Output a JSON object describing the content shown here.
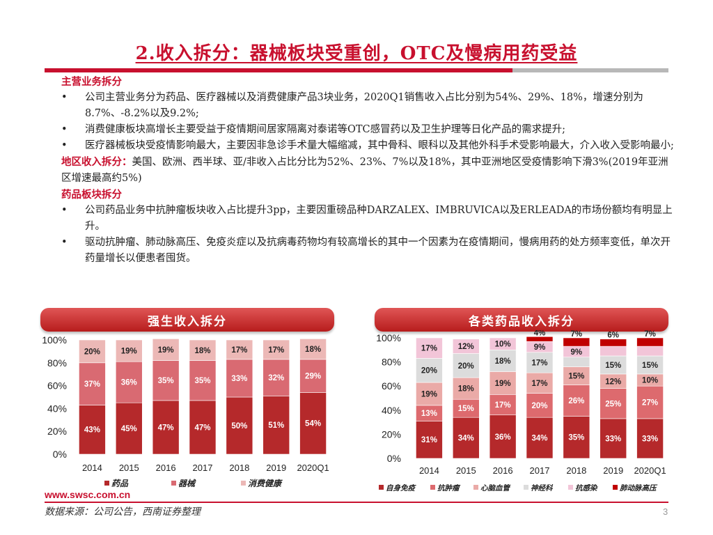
{
  "title": "2.收入拆分：器械板块受重创，OTC及慢病用药受益",
  "sections": [
    {
      "heading": "主营业务拆分",
      "bullets": [
        "公司主营业务分为药品、医疗器械以及消费健康产品3块业务，2020Q1销售收入占比分别为54%、29%、18%，增速分别为8.7%、-8.2%以及9.2%;",
        "消费健康板块高增长主要受益于疫情期间居家隔离对泰诺等OTC感冒药以及卫生护理等日化产品的需求提升;",
        "医疗器械板块受疫情影响最大，主要因非急诊手术量大幅缩减，其中骨科、眼科以及其他外科手术受影响最大，介入收入受影响最小;"
      ]
    },
    {
      "heading": "地区收入拆分：",
      "text": "美国、欧洲、西半球、亚/非收入占比分比为52%、23%、7%以及18%，其中亚洲地区受疫情影响下滑3%(2019年亚洲区增速最高约5%)"
    },
    {
      "heading": "药品板块拆分",
      "bullets": [
        "公司药品业务中抗肿瘤板块收入占比提升3pp，主要因重磅品种DARZALEX、IMBRUVICA以及ERLEADA的市场份额均有明显上升。",
        "驱动抗肿瘤、肺动脉高压、免疫炎症以及抗病毒药物均有较高增长的其中一个因素为在疫情期间，慢病用药的处方频率变低，单次开药量增长以便患者囤货。"
      ]
    }
  ],
  "chart_left_title": "强生收入拆分",
  "chart_right_title": "各类药品收入拆分",
  "chart_data": [
    {
      "type": "bar",
      "stacked": true,
      "title": "强生收入拆分",
      "categories": [
        "2014",
        "2015",
        "2016",
        "2017",
        "2018",
        "2019",
        "2020Q1"
      ],
      "ylim": [
        0,
        100
      ],
      "yticks": [
        "0%",
        "20%",
        "40%",
        "60%",
        "80%",
        "100%"
      ],
      "legend_position": "bottom",
      "series": [
        {
          "name": "药品",
          "color": "#b5292b",
          "values": [
            43,
            45,
            47,
            47,
            50,
            51,
            54
          ]
        },
        {
          "name": "器械",
          "color": "#d96a72",
          "values": [
            37,
            36,
            35,
            35,
            33,
            32,
            29
          ]
        },
        {
          "name": "消费健康",
          "color": "#ecb8b6",
          "values": [
            20,
            19,
            19,
            18,
            17,
            17,
            18
          ]
        }
      ]
    },
    {
      "type": "bar",
      "stacked": true,
      "title": "各类药品收入拆分",
      "categories": [
        "2014",
        "2015",
        "2016",
        "2017",
        "2018",
        "2019",
        "2020Q1"
      ],
      "ylim": [
        0,
        100
      ],
      "yticks": [
        "0%",
        "20%",
        "40%",
        "60%",
        "80%",
        "100%"
      ],
      "legend_position": "bottom",
      "series": [
        {
          "name": "自身免疫",
          "color": "#b5292b",
          "values": [
            31,
            34,
            36,
            34,
            35,
            33,
            33
          ]
        },
        {
          "name": "抗肿瘤",
          "color": "#dd6a6e",
          "values": [
            13,
            15,
            17,
            20,
            26,
            25,
            27
          ]
        },
        {
          "name": "心脑血管",
          "color": "#eaaaa7",
          "values": [
            19,
            18,
            19,
            17,
            15,
            12,
            10
          ]
        },
        {
          "name": "神经科",
          "color": "#dcdcdc",
          "values": [
            20,
            20,
            18,
            17,
            8,
            15,
            15
          ]
        },
        {
          "name": "抗感染",
          "color": "#f2c5d8",
          "values": [
            17,
            12,
            10,
            9,
            9,
            8,
            8
          ]
        },
        {
          "name": "肺动脉高压",
          "color": "#c00000",
          "values": [
            0,
            0,
            0,
            4,
            7,
            6,
            7
          ]
        }
      ]
    }
  ],
  "footer": {
    "url": "www.swsc.com.cn",
    "source": "数据来源：公司公告，西南证券整理",
    "page": "3"
  }
}
